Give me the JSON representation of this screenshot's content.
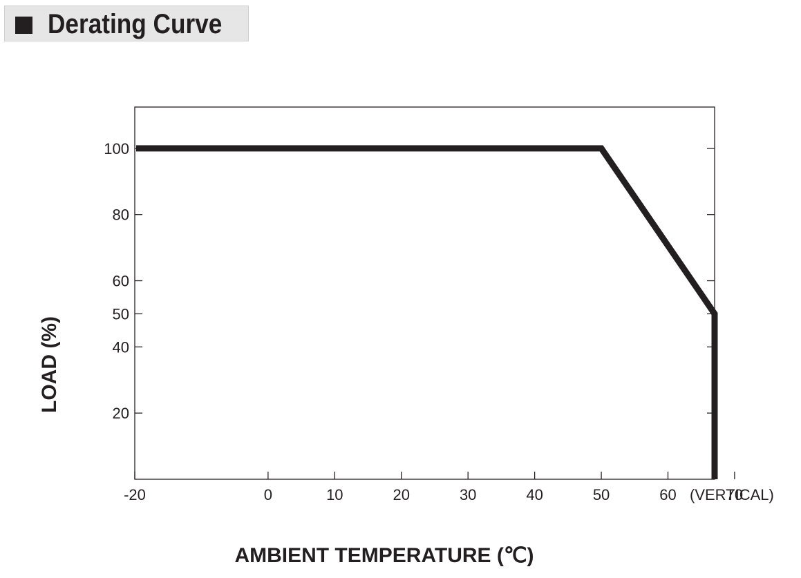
{
  "header": {
    "title": "Derating Curve"
  },
  "chart_data": {
    "type": "line",
    "title": "Derating Curve",
    "xlabel": "AMBIENT TEMPERATURE (℃)",
    "ylabel": "LOAD (%)",
    "x_note": "(VERTICAL)",
    "xlim": [
      -20,
      67
    ],
    "ylim": [
      0,
      112.5
    ],
    "x_ticks": [
      -20,
      0,
      10,
      20,
      30,
      40,
      50,
      60,
      70
    ],
    "y_ticks": [
      20,
      40,
      50,
      60,
      80,
      100
    ],
    "grid": false,
    "series": [
      {
        "name": "",
        "color": "#231f20",
        "x": [
          -20,
          50,
          70,
          70
        ],
        "y": [
          100,
          100,
          50,
          0
        ]
      }
    ]
  }
}
